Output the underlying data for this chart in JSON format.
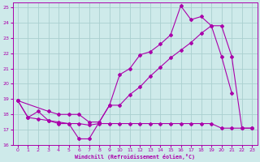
{
  "xlabel": "Windchill (Refroidissement éolien,°C)",
  "xlim": [
    -0.5,
    23.5
  ],
  "ylim": [
    16,
    25.3
  ],
  "yticks": [
    16,
    17,
    18,
    19,
    20,
    21,
    22,
    23,
    24,
    25
  ],
  "xticks": [
    0,
    1,
    2,
    3,
    4,
    5,
    6,
    7,
    8,
    9,
    10,
    11,
    12,
    13,
    14,
    15,
    16,
    17,
    18,
    19,
    20,
    21,
    22,
    23
  ],
  "bg_color": "#ceeaea",
  "grid_color": "#aacfcf",
  "line_color": "#aa00aa",
  "line1_x": [
    0,
    1,
    2,
    3,
    4,
    5,
    6,
    7,
    8,
    9,
    10,
    11,
    12,
    13,
    14,
    15,
    16,
    17,
    18,
    19,
    20,
    21
  ],
  "line1_y": [
    18.9,
    17.8,
    18.2,
    17.6,
    17.5,
    17.4,
    16.4,
    16.4,
    17.5,
    18.6,
    20.6,
    21.0,
    21.9,
    22.1,
    22.6,
    23.2,
    25.1,
    24.2,
    24.4,
    23.8,
    21.8,
    19.4
  ],
  "line2_x": [
    0,
    3,
    4,
    5,
    6,
    7,
    8,
    9,
    10,
    11,
    12,
    13,
    14,
    15,
    16,
    17,
    18,
    19,
    20,
    21,
    22,
    23
  ],
  "line2_y": [
    18.9,
    18.2,
    18.0,
    18.0,
    18.0,
    17.5,
    17.5,
    18.6,
    18.6,
    19.3,
    19.8,
    20.5,
    21.1,
    21.7,
    22.2,
    22.7,
    23.3,
    23.8,
    23.8,
    21.8,
    17.1,
    17.1
  ],
  "line3_x": [
    0,
    1,
    2,
    3,
    4,
    5,
    6,
    7,
    8,
    9,
    10,
    11,
    12,
    13,
    14,
    15,
    16,
    17,
    18,
    19,
    20,
    21,
    22,
    23
  ],
  "line3_y": [
    18.9,
    17.8,
    17.7,
    17.6,
    17.4,
    17.4,
    17.4,
    17.3,
    17.4,
    17.4,
    17.4,
    17.4,
    17.4,
    17.4,
    17.4,
    17.4,
    17.4,
    17.4,
    17.4,
    17.4,
    17.1,
    17.1,
    17.1,
    17.1
  ]
}
